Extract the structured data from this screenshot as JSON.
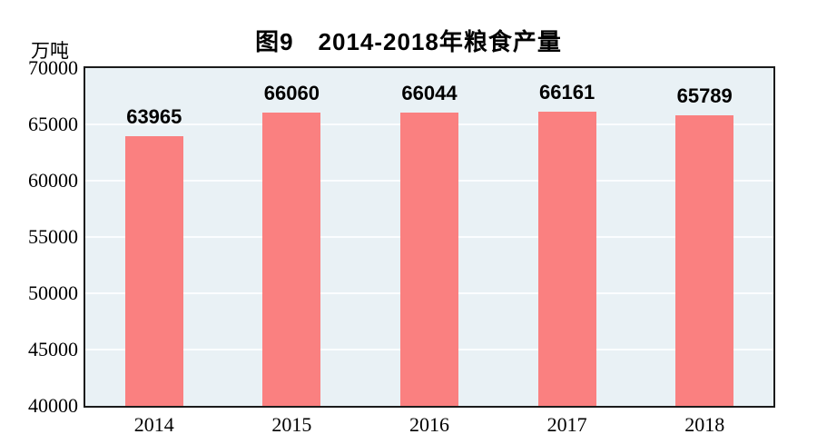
{
  "chart_data": {
    "type": "bar",
    "title": "图9　2014-2018年粮食产量",
    "unit_label": "万吨",
    "categories": [
      "2014",
      "2015",
      "2016",
      "2017",
      "2018"
    ],
    "values": [
      63965,
      66060,
      66044,
      66161,
      65789
    ],
    "value_labels": [
      "63965",
      "66060",
      "66044",
      "66161",
      "65789"
    ],
    "xlabel": "",
    "ylabel": "万吨",
    "ylim": [
      40000,
      70000
    ],
    "ytick_step": 5000,
    "yticks": [
      70000,
      65000,
      60000,
      55000,
      50000,
      45000,
      40000
    ],
    "grid": true,
    "legend_position": "none",
    "colors": {
      "bar": "#FA8080",
      "plot_bg": "#E9F1F5",
      "gridline": "#FBFDFF",
      "frame": "#1B1B1B",
      "text": "#000000"
    }
  }
}
